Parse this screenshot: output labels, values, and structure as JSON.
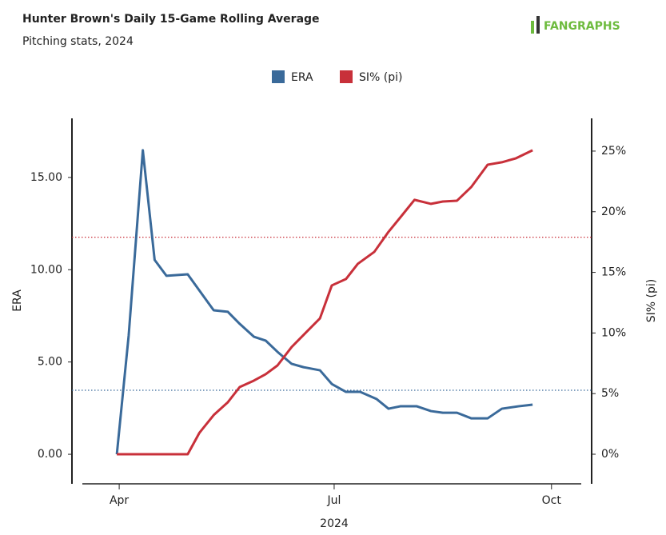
{
  "chart_data": {
    "type": "line",
    "title": "Hunter Brown's Daily 15-Game Rolling Average",
    "subtitle": "Pitching stats, 2024",
    "logo": "FANGRAPHS",
    "x_label": "2024",
    "y_label": "ERA",
    "y2_label": "SI% (pi)",
    "xlim": [
      72,
      292
    ],
    "xticks": [
      {
        "value": 92,
        "label": "Apr"
      },
      {
        "value": 183,
        "label": "Jul"
      },
      {
        "value": 275,
        "label": "Oct"
      }
    ],
    "ylim": [
      -1.6,
      18.2
    ],
    "yticks": [
      {
        "value": 0,
        "label": "0.00"
      },
      {
        "value": 5,
        "label": "5.00"
      },
      {
        "value": 10,
        "label": "10.00"
      },
      {
        "value": 15,
        "label": "15.00"
      }
    ],
    "y2lim": [
      -2.44,
      27.7
    ],
    "y2ticks": [
      {
        "value": 0,
        "label": "0%"
      },
      {
        "value": 5,
        "label": "5%"
      },
      {
        "value": 10,
        "label": "10%"
      },
      {
        "value": 15,
        "label": "15%"
      },
      {
        "value": 20,
        "label": "20%"
      },
      {
        "value": 25,
        "label": "25%"
      }
    ],
    "legend": "top",
    "reference_lines": [
      {
        "value": 3.47,
        "axis": "y",
        "color": "#3a6a9a"
      },
      {
        "value": 17.9,
        "axis": "y2",
        "color": "#c8303a"
      }
    ],
    "series": [
      {
        "name": "ERA",
        "color": "#3a6a9a",
        "axis": "y",
        "x": [
          91,
          96,
          102,
          107,
          112,
          121,
          132,
          138,
          143,
          149,
          154,
          159,
          165,
          170,
          177,
          182,
          188,
          194,
          201,
          206,
          211,
          218,
          224,
          229,
          235,
          241,
          248,
          254,
          261,
          267
        ],
        "values": [
          0,
          6.42,
          16.47,
          10.53,
          9.67,
          9.75,
          7.8,
          7.72,
          7.07,
          6.37,
          6.16,
          5.55,
          4.9,
          4.72,
          4.55,
          3.81,
          3.38,
          3.38,
          2.99,
          2.47,
          2.6,
          2.6,
          2.34,
          2.25,
          2.25,
          1.95,
          1.95,
          2.47,
          2.6,
          2.69
        ]
      },
      {
        "name": "SI% (pi)",
        "color": "#c8303a",
        "axis": "y2",
        "x": [
          91,
          121,
          126,
          132,
          138,
          143,
          149,
          154,
          159,
          165,
          171,
          177,
          182,
          188,
          193,
          200,
          206,
          211,
          217,
          224,
          229,
          235,
          241,
          248,
          254,
          260,
          267
        ],
        "values": [
          0,
          0,
          1.78,
          3.23,
          4.29,
          5.54,
          6.07,
          6.6,
          7.32,
          8.84,
          10.03,
          11.21,
          13.92,
          14.45,
          15.7,
          16.69,
          18.34,
          19.53,
          20.98,
          20.65,
          20.84,
          20.91,
          22.03,
          23.88,
          24.08,
          24.41,
          25.07
        ]
      }
    ]
  }
}
